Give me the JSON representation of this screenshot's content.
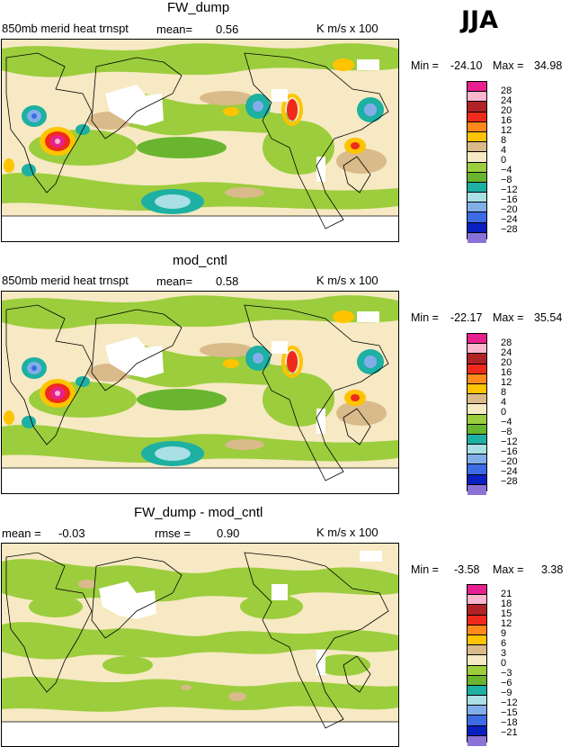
{
  "season_label": "JJA",
  "panels": [
    {
      "title": "FW_dump",
      "left_label": "850mb merid heat trnspt",
      "mean_label": "mean=",
      "mean_value": "0.56",
      "units": "K m/s x 100",
      "min_label": "Min =",
      "min_value": "-24.10",
      "max_label": "Max =",
      "max_value": "34.98",
      "levels": [
        "28",
        "24",
        "20",
        "16",
        "12",
        "8",
        "4",
        "0",
        "−4",
        "−8",
        "−12",
        "−16",
        "−20",
        "−24",
        "−28"
      ]
    },
    {
      "title": "mod_cntl",
      "left_label": "850mb merid heat trnspt",
      "mean_label": "mean=",
      "mean_value": "0.58",
      "units": "K m/s x 100",
      "min_label": "Min =",
      "min_value": "-22.17",
      "max_label": "Max =",
      "max_value": "35.54",
      "levels": [
        "28",
        "24",
        "20",
        "16",
        "12",
        "8",
        "4",
        "0",
        "−4",
        "−8",
        "−12",
        "−16",
        "−20",
        "−24",
        "−28"
      ]
    },
    {
      "title": "FW_dump - mod_cntl",
      "left_label": "mean =",
      "mean_label": "",
      "mean_value": "-0.03",
      "rmse_label": "rmse =",
      "rmse_value": "0.90",
      "units": "K m/s x 100",
      "min_label": "Min =",
      "min_value": "-3.58",
      "max_label": "Max =",
      "max_value": "3.38",
      "levels": [
        "21",
        "18",
        "15",
        "12",
        "9",
        "6",
        "3",
        "0",
        "−3",
        "−6",
        "−9",
        "−12",
        "−15",
        "−18",
        "−21"
      ]
    }
  ],
  "colorbar_colors": [
    "#e8208f",
    "#fbb6cd",
    "#b02226",
    "#ef2a1c",
    "#ff8a1b",
    "#ffc400",
    "#d9ba8b",
    "#f6e9c3",
    "#9ccd3d",
    "#69b530",
    "#1db0a3",
    "#a9dfe5",
    "#81aee9",
    "#3d6be4",
    "#0a1fbf",
    "#8a72d8"
  ]
}
